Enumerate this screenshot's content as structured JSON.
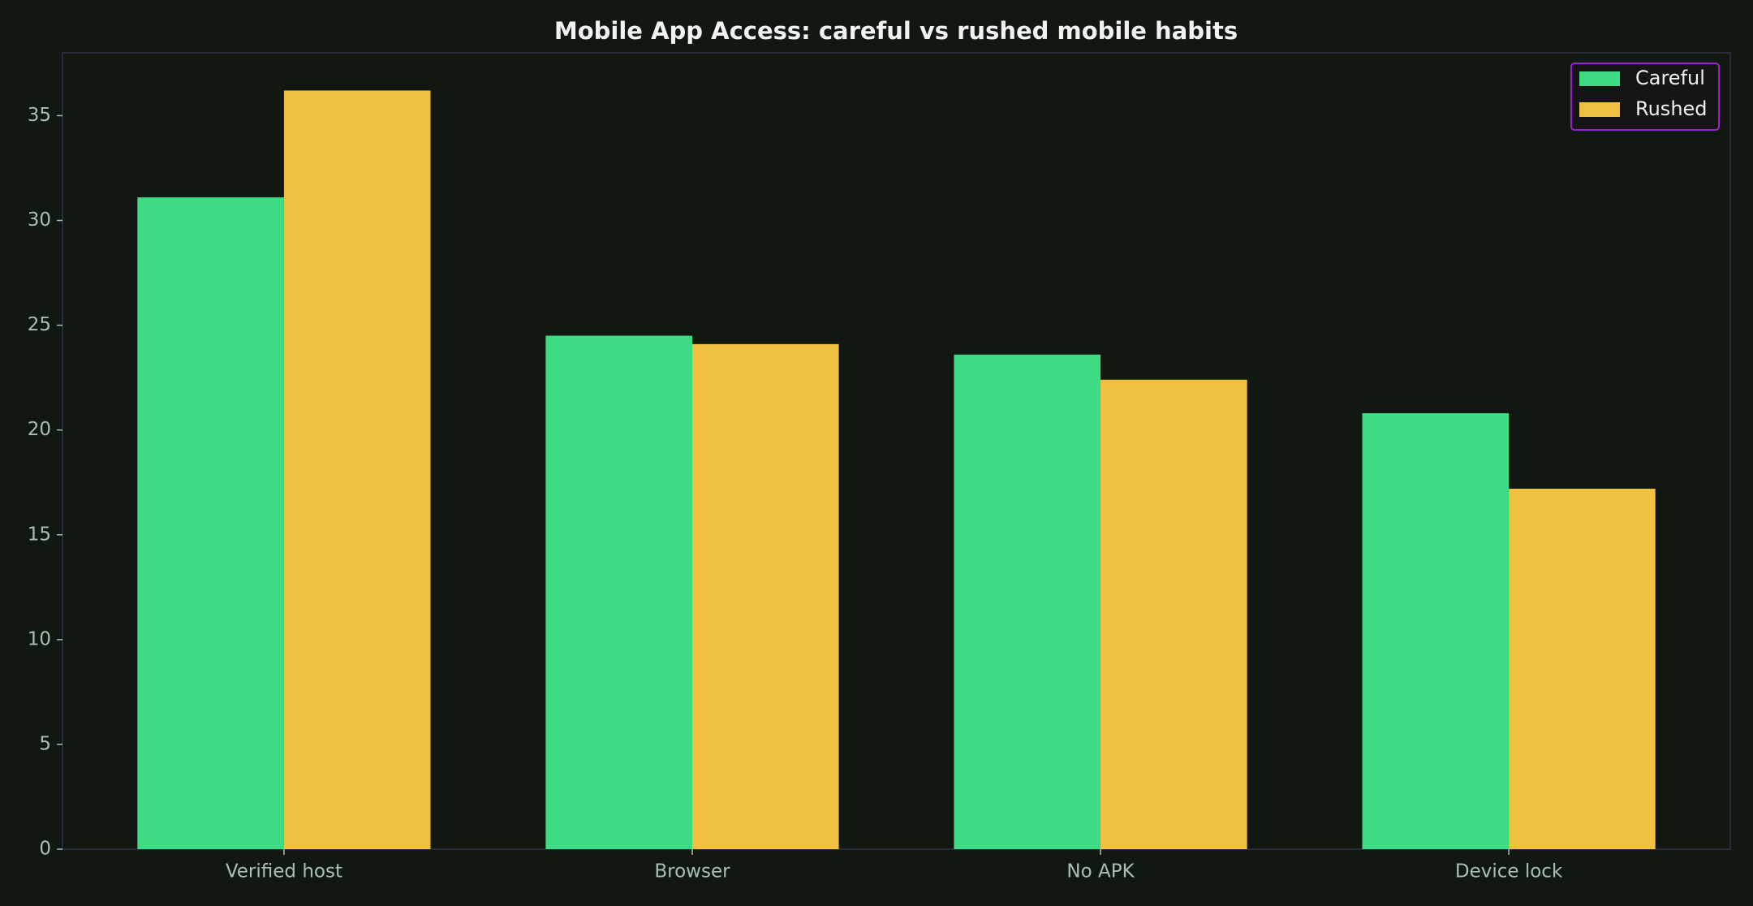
{
  "chart_data": {
    "type": "bar",
    "title": "Mobile App Access: careful vs rushed mobile habits",
    "categories": [
      "Verified host",
      "Browser",
      "No APK",
      "Device lock"
    ],
    "series": [
      {
        "name": "Careful",
        "color": "#3ddc84",
        "values": [
          31.1,
          24.5,
          23.6,
          20.8
        ]
      },
      {
        "name": "Rushed",
        "color": "#f0c040",
        "values": [
          36.2,
          24.1,
          22.4,
          17.2
        ]
      }
    ],
    "ylim": [
      0,
      38.0
    ],
    "yticks": [
      0,
      5,
      10,
      15,
      20,
      25,
      30,
      35
    ],
    "legend": "upper right"
  }
}
